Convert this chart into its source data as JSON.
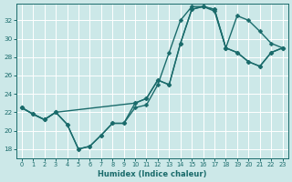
{
  "xlabel": "Humidex (Indice chaleur)",
  "bg_color": "#cce8e8",
  "line_color": "#1a6b6b",
  "grid_color": "#ffffff",
  "xlim": [
    -0.5,
    23.5
  ],
  "ylim": [
    17.0,
    33.8
  ],
  "yticks": [
    18,
    20,
    22,
    24,
    26,
    28,
    30,
    32
  ],
  "xticks": [
    0,
    1,
    2,
    3,
    4,
    5,
    6,
    7,
    8,
    9,
    10,
    11,
    12,
    13,
    14,
    15,
    16,
    17,
    18,
    19,
    20,
    21,
    22,
    23
  ],
  "curve_lw": 1.0,
  "marker_size": 2.5,
  "line1_x": [
    0,
    1,
    2,
    3,
    4,
    5,
    6,
    7,
    8,
    9,
    10,
    11,
    12,
    13,
    14,
    15,
    16,
    17,
    18,
    19,
    20,
    21,
    22,
    23
  ],
  "line1_y": [
    22.5,
    21.8,
    21.2,
    22.0,
    20.7,
    18.0,
    18.3,
    19.5,
    20.8,
    20.8,
    22.5,
    22.8,
    25.0,
    28.5,
    32.0,
    33.5,
    33.5,
    33.0,
    29.0,
    32.5,
    32.0,
    30.8,
    29.5,
    29.0
  ],
  "line2_x": [
    0,
    1,
    2,
    3,
    4,
    5,
    6,
    7,
    8,
    9,
    10,
    11,
    12,
    13,
    14,
    15,
    16,
    17,
    18,
    19,
    20,
    21,
    22,
    23
  ],
  "line2_y": [
    22.5,
    21.8,
    21.2,
    22.0,
    20.7,
    18.0,
    18.3,
    19.5,
    20.8,
    20.8,
    23.0,
    23.5,
    25.5,
    25.0,
    29.5,
    33.2,
    33.5,
    33.2,
    29.0,
    28.5,
    27.5,
    27.0,
    28.5,
    29.0
  ],
  "line3_x": [
    0,
    1,
    2,
    3,
    10,
    11,
    12,
    13,
    14,
    15,
    16,
    17,
    18,
    19,
    20,
    21,
    22,
    23
  ],
  "line3_y": [
    22.5,
    21.8,
    21.2,
    22.0,
    23.0,
    23.5,
    25.5,
    25.0,
    29.5,
    33.2,
    33.5,
    33.2,
    29.0,
    28.5,
    27.5,
    27.0,
    28.5,
    29.0
  ]
}
